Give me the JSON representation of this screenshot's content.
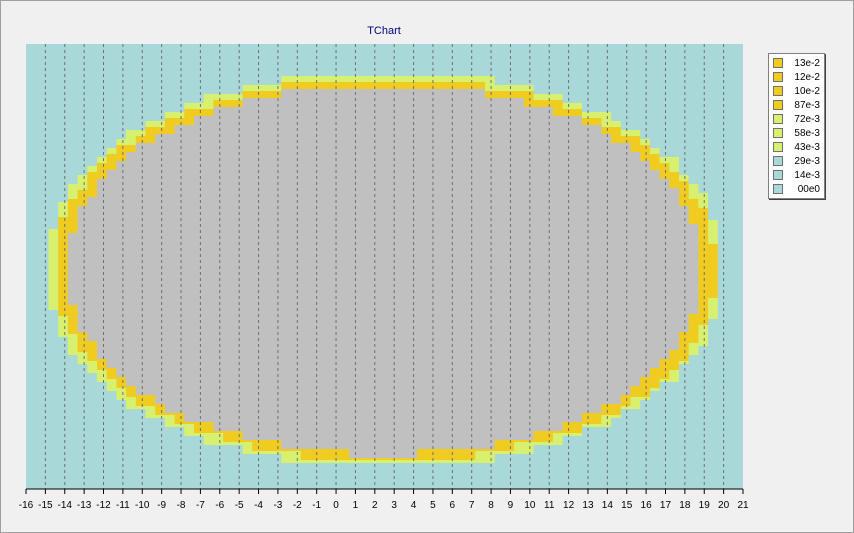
{
  "chart_data": {
    "type": "heatmap",
    "title": "TChart",
    "x_ticks": [
      "-16",
      "-15",
      "-14",
      "-13",
      "-12",
      "-11",
      "-10",
      "-9",
      "-8",
      "-7",
      "-6",
      "-5",
      "-4",
      "-3",
      "-2",
      "-1",
      "0",
      "1",
      "2",
      "3",
      "4",
      "5",
      "6",
      "7",
      "8",
      "9",
      "10",
      "11",
      "12",
      "13",
      "14",
      "15",
      "16",
      "17",
      "18",
      "19",
      "20",
      "21"
    ],
    "xlim": [
      -16,
      21
    ],
    "grid": "vertical-dashed",
    "legend_position": "right",
    "legend": [
      {
        "label": "13e-2",
        "color": "#f0cc20"
      },
      {
        "label": "12e-2",
        "color": "#f0cc20"
      },
      {
        "label": "10e-2",
        "color": "#f0cc20"
      },
      {
        "label": "87e-3",
        "color": "#f0cc20"
      },
      {
        "label": "72e-3",
        "color": "#d8f070"
      },
      {
        "label": "58e-3",
        "color": "#d8f070"
      },
      {
        "label": "43e-3",
        "color": "#d8f070"
      },
      {
        "label": "29e-3",
        "color": "#a8d8d8"
      },
      {
        "label": "14e-3",
        "color": "#a8d8d8"
      },
      {
        "label": "00e0",
        "color": "#a8d8d8"
      }
    ],
    "colors": {
      "background": "#a8d8d8",
      "outer_band": "#d8f070",
      "yellow_band": "#f0cc20",
      "interior": "#c0c0c0"
    }
  }
}
